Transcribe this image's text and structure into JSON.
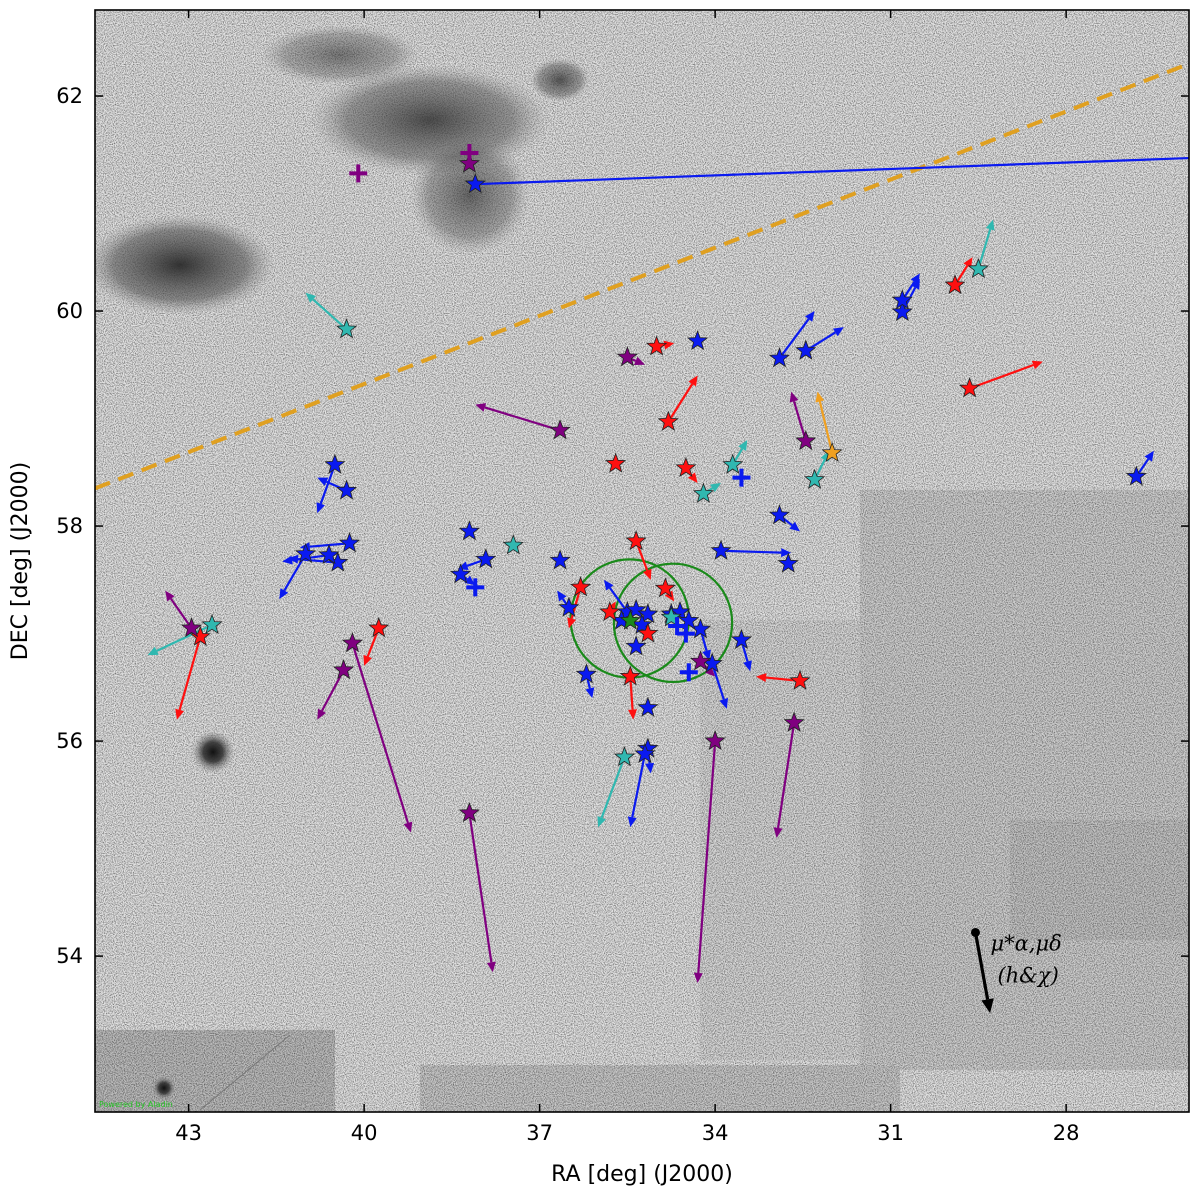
{
  "chart_data": {
    "type": "scatter",
    "title": "",
    "xlabel": "RA [deg] (J2000)",
    "ylabel": "DEC [deg] (J2000)",
    "xlim": [
      44.6,
      25.9
    ],
    "ylim": [
      52.55,
      62.8
    ],
    "x_ticks": [
      43,
      40,
      37,
      34,
      31,
      28
    ],
    "y_ticks": [
      54,
      56,
      58,
      60,
      62
    ],
    "grid": false,
    "background": "inverted grayscale sky survey image",
    "credit_text": "Powered by Aladin",
    "legend": {
      "placement": "bottom-right",
      "label": "μ*α,μδ",
      "sublabel": "(h&χ)",
      "arrow": {
        "ra": 29.55,
        "dec": 54.22,
        "dra": -0.25,
        "ddec": -0.75
      }
    },
    "galactic_plane": {
      "color": "#e0a020",
      "line": [
        [
          44.6,
          58.35
        ],
        [
          25.9,
          62.3
        ]
      ]
    },
    "cluster_circles": [
      {
        "ra": 35.46,
        "dec": 57.14,
        "radius_deg": 0.55
      },
      {
        "ra": 34.72,
        "dec": 57.1,
        "radius_deg": 0.55
      }
    ],
    "colors": {
      "blue": "#0a1af0",
      "red": "#ff1010",
      "purple": "#800080",
      "cyan": "#30b8b0",
      "orange": "#f0a020",
      "green": "#1a8a1a"
    },
    "series": [
      {
        "color_key": "blue",
        "marker": "star",
        "points": [
          [
            38.1,
            61.18,
            1.9,
            61.9
          ],
          [
            34.3,
            59.72,
            null,
            null
          ],
          [
            32.9,
            59.56,
            32.3,
            60.0
          ],
          [
            32.45,
            59.63,
            31.8,
            59.85
          ],
          [
            30.8,
            59.99,
            30.5,
            60.3
          ],
          [
            30.8,
            60.1,
            30.5,
            60.35
          ],
          [
            26.8,
            58.46,
            26.5,
            58.7
          ],
          [
            40.3,
            58.33,
            40.8,
            58.45
          ],
          [
            40.5,
            58.57,
            40.8,
            58.12
          ],
          [
            40.25,
            57.84,
            41.1,
            57.8
          ],
          [
            40.45,
            57.66,
            41.3,
            57.7
          ],
          [
            40.6,
            57.73,
            41.4,
            57.67
          ],
          [
            41.0,
            57.74,
            41.45,
            57.32
          ],
          [
            38.2,
            57.95,
            null,
            null
          ],
          [
            38.35,
            57.55,
            38.1,
            57.45
          ],
          [
            37.92,
            57.69,
            38.4,
            57.6
          ],
          [
            36.65,
            57.68,
            null,
            null
          ],
          [
            36.5,
            57.24,
            36.7,
            57.4
          ],
          [
            32.9,
            58.1,
            32.55,
            57.95
          ],
          [
            33.9,
            57.77,
            32.7,
            57.75
          ],
          [
            32.75,
            57.65,
            null,
            null
          ],
          [
            33.55,
            56.94,
            33.4,
            56.65
          ],
          [
            34.25,
            57.04,
            34.1,
            56.75
          ],
          [
            34.05,
            56.72,
            33.8,
            56.3
          ],
          [
            36.2,
            56.62,
            36.1,
            56.4
          ],
          [
            35.15,
            56.31,
            null,
            null
          ],
          [
            35.15,
            55.93,
            35.1,
            55.7
          ],
          [
            35.2,
            55.88,
            35.45,
            55.2
          ],
          [
            35.5,
            57.2,
            35.9,
            57.5
          ],
          [
            35.35,
            57.22,
            null,
            null
          ],
          [
            35.15,
            57.18,
            null,
            null
          ],
          [
            34.75,
            57.18,
            null,
            null
          ],
          [
            34.6,
            57.2,
            null,
            null
          ],
          [
            34.45,
            57.12,
            null,
            null
          ],
          [
            35.6,
            57.12,
            null,
            null
          ],
          [
            35.25,
            57.08,
            null,
            null
          ],
          [
            35.35,
            56.88,
            null,
            null
          ]
        ]
      },
      {
        "color_key": "red",
        "marker": "star",
        "points": [
          [
            35.0,
            59.67,
            34.7,
            59.7
          ],
          [
            34.8,
            58.97,
            34.3,
            59.4
          ],
          [
            35.7,
            58.58,
            null,
            null
          ],
          [
            34.5,
            58.54,
            34.3,
            58.4
          ],
          [
            29.9,
            60.24,
            29.6,
            60.5
          ],
          [
            29.65,
            59.28,
            28.4,
            59.53
          ],
          [
            35.35,
            57.86,
            35.1,
            57.5
          ],
          [
            36.3,
            57.43,
            36.5,
            57.05
          ],
          [
            34.85,
            57.42,
            34.7,
            57.3
          ],
          [
            35.8,
            57.2,
            35.7,
            57.3
          ],
          [
            35.15,
            57.0,
            null,
            null
          ],
          [
            32.55,
            56.56,
            33.3,
            56.6
          ],
          [
            35.45,
            56.6,
            35.4,
            56.2
          ],
          [
            42.8,
            56.97,
            43.2,
            56.2
          ],
          [
            39.75,
            57.05,
            40.0,
            56.7
          ]
        ]
      },
      {
        "color_key": "purple",
        "marker": "star",
        "points": [
          [
            38.2,
            61.37,
            null,
            null
          ],
          [
            35.5,
            59.57,
            35.2,
            59.5
          ],
          [
            36.65,
            58.89,
            38.1,
            59.13
          ],
          [
            32.45,
            58.79,
            32.7,
            59.25
          ],
          [
            42.95,
            57.05,
            43.4,
            57.4
          ],
          [
            40.2,
            56.91,
            39.2,
            55.15
          ],
          [
            40.35,
            56.66,
            40.8,
            56.2
          ],
          [
            38.2,
            55.33,
            37.8,
            53.85
          ],
          [
            34.0,
            56.0,
            34.3,
            53.75
          ],
          [
            32.65,
            56.17,
            32.95,
            55.1
          ],
          [
            34.25,
            56.74,
            34.0,
            56.6
          ]
        ]
      },
      {
        "color_key": "cyan",
        "marker": "star",
        "points": [
          [
            40.3,
            59.83,
            41.0,
            60.17
          ],
          [
            29.5,
            60.39,
            29.25,
            60.85
          ],
          [
            33.7,
            58.57,
            33.45,
            58.8
          ],
          [
            34.2,
            58.3,
            33.9,
            58.4
          ],
          [
            32.3,
            58.43,
            32.05,
            58.7
          ],
          [
            37.45,
            57.82,
            null,
            null
          ],
          [
            42.6,
            57.08,
            43.7,
            56.8
          ],
          [
            35.55,
            55.85,
            36.0,
            55.2
          ],
          [
            34.75,
            57.15,
            null,
            null
          ]
        ]
      },
      {
        "color_key": "orange",
        "marker": "star",
        "points": [
          [
            32.0,
            58.68,
            32.25,
            59.25
          ]
        ]
      },
      {
        "color_key": "purple",
        "marker": "plus",
        "points": [
          [
            40.1,
            61.28,
            null,
            null
          ],
          [
            38.2,
            61.47,
            null,
            null
          ]
        ]
      },
      {
        "color_key": "blue",
        "marker": "plus",
        "points": [
          [
            33.55,
            58.45,
            null,
            null
          ],
          [
            38.1,
            57.43,
            null,
            null
          ],
          [
            34.65,
            57.07,
            null,
            null
          ],
          [
            34.5,
            57.0,
            null,
            null
          ],
          [
            34.45,
            56.64,
            null,
            null
          ]
        ]
      },
      {
        "color_key": "green",
        "marker": "star",
        "points": [
          [
            35.45,
            57.12,
            null,
            null
          ]
        ]
      }
    ]
  }
}
